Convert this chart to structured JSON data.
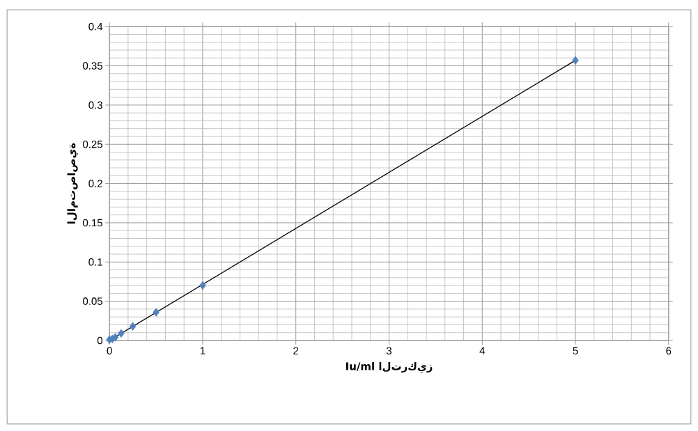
{
  "chart_data": {
    "type": "scatter",
    "xlabel": "Iu/ml التركيز",
    "ylabel": "الامتصاصية",
    "series": [
      {
        "color": "#4f81bd",
        "x": [
          0,
          0.03125,
          0.0625,
          0.125,
          0.25,
          0.5,
          1,
          5
        ],
        "values": [
          0.001,
          0.002,
          0.004,
          0.009,
          0.018,
          0.036,
          0.07,
          0.357
        ]
      },
      {
        "type": "line",
        "color": "#000000",
        "marker": "none",
        "x": [
          0,
          5
        ],
        "values": [
          0,
          0.357
        ]
      }
    ],
    "xlim": [
      0,
      6
    ],
    "xticks": [
      0,
      1,
      2,
      3,
      4,
      5,
      6
    ],
    "ylim": [
      0,
      0.4
    ],
    "yticks": [
      0,
      0.05,
      0.1,
      0.15,
      0.2,
      0.25,
      0.3,
      0.35,
      0.4
    ],
    "grid": true,
    "marker": "diamond"
  }
}
